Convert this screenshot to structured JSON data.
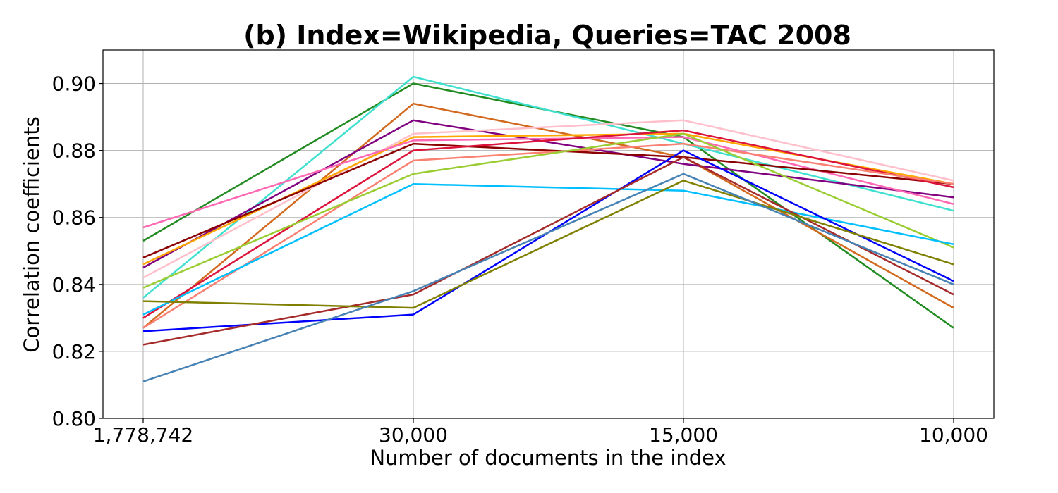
{
  "chart_data": {
    "type": "line",
    "title": "(b) Index=Wikipedia, Queries=TAC 2008",
    "xlabel": "Number of documents in the index",
    "ylabel": "Correlation coefficients",
    "categories": [
      "1,778,742",
      "30,000",
      "15,000",
      "10,000"
    ],
    "ylim": [
      0.8,
      0.91
    ],
    "yticks": [
      "0.80",
      "0.82",
      "0.84",
      "0.86",
      "0.88",
      "0.90"
    ],
    "ytick_values": [
      0.8,
      0.82,
      0.84,
      0.86,
      0.88,
      0.9
    ],
    "grid": true,
    "series": [
      {
        "color": "#228B22",
        "values": [
          0.853,
          0.9,
          0.884,
          0.827
        ]
      },
      {
        "color": "#40E0D0",
        "values": [
          0.836,
          0.902,
          0.882,
          0.862
        ]
      },
      {
        "color": "#D2691E",
        "values": [
          0.827,
          0.894,
          0.878,
          0.833
        ]
      },
      {
        "color": "#800080",
        "values": [
          0.845,
          0.889,
          0.876,
          0.866
        ]
      },
      {
        "color": "#FFC0CB",
        "values": [
          0.842,
          0.885,
          0.889,
          0.871
        ]
      },
      {
        "color": "#FFA500",
        "values": [
          0.846,
          0.884,
          0.885,
          0.87
        ]
      },
      {
        "color": "#FF69B4",
        "values": [
          0.857,
          0.883,
          0.884,
          0.864
        ]
      },
      {
        "color": "#8B0000",
        "values": [
          0.848,
          0.882,
          0.878,
          0.87
        ]
      },
      {
        "color": "#DC143C",
        "values": [
          0.83,
          0.88,
          0.886,
          0.869
        ]
      },
      {
        "color": "#FA8072",
        "values": [
          0.827,
          0.877,
          0.882,
          0.87
        ]
      },
      {
        "color": "#9ACD32",
        "values": [
          0.839,
          0.873,
          0.885,
          0.851
        ]
      },
      {
        "color": "#00BFFF",
        "values": [
          0.831,
          0.87,
          0.868,
          0.852
        ]
      },
      {
        "color": "#0000FF",
        "values": [
          0.826,
          0.831,
          0.88,
          0.841
        ]
      },
      {
        "color": "#A52A2A",
        "values": [
          0.822,
          0.837,
          0.878,
          0.837
        ]
      },
      {
        "color": "#808000",
        "values": [
          0.835,
          0.833,
          0.871,
          0.846
        ]
      },
      {
        "color": "#4682B4",
        "values": [
          0.811,
          0.838,
          0.873,
          0.84
        ]
      }
    ]
  }
}
